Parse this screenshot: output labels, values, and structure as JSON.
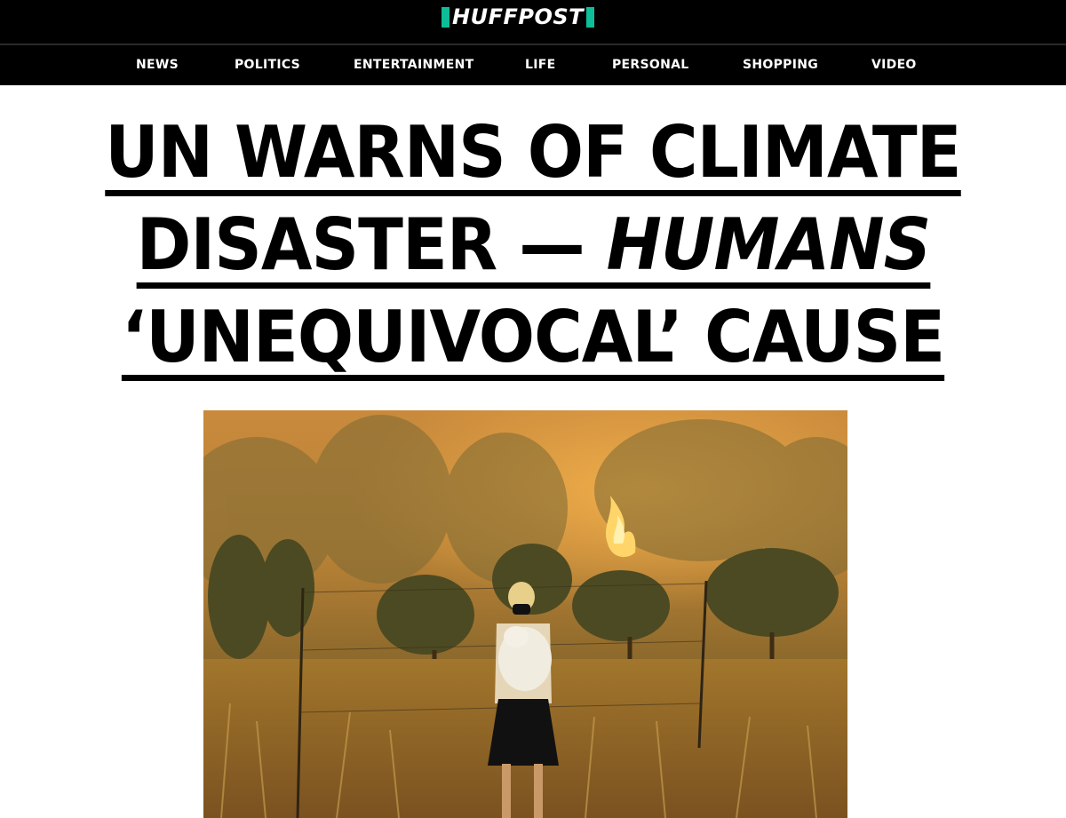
{
  "site": {
    "logo_text": "HUFFPOST",
    "brand_color": "#0dbe98"
  },
  "nav": {
    "items": [
      {
        "label": "NEWS"
      },
      {
        "label": "POLITICS"
      },
      {
        "label": "ENTERTAINMENT"
      },
      {
        "label": "LIFE"
      },
      {
        "label": "PERSONAL"
      },
      {
        "label": "SHOPPING"
      },
      {
        "label": "VIDEO"
      }
    ]
  },
  "article": {
    "headline": {
      "line1": "UN WARNS OF CLIMATE",
      "line2_plain": "DISASTER — ",
      "line2_italic": "HUMANS",
      "line3_italic": "‘UNEQUIVOCAL’ CAUSE"
    },
    "image": {
      "icon": "wildfire-photo"
    }
  }
}
